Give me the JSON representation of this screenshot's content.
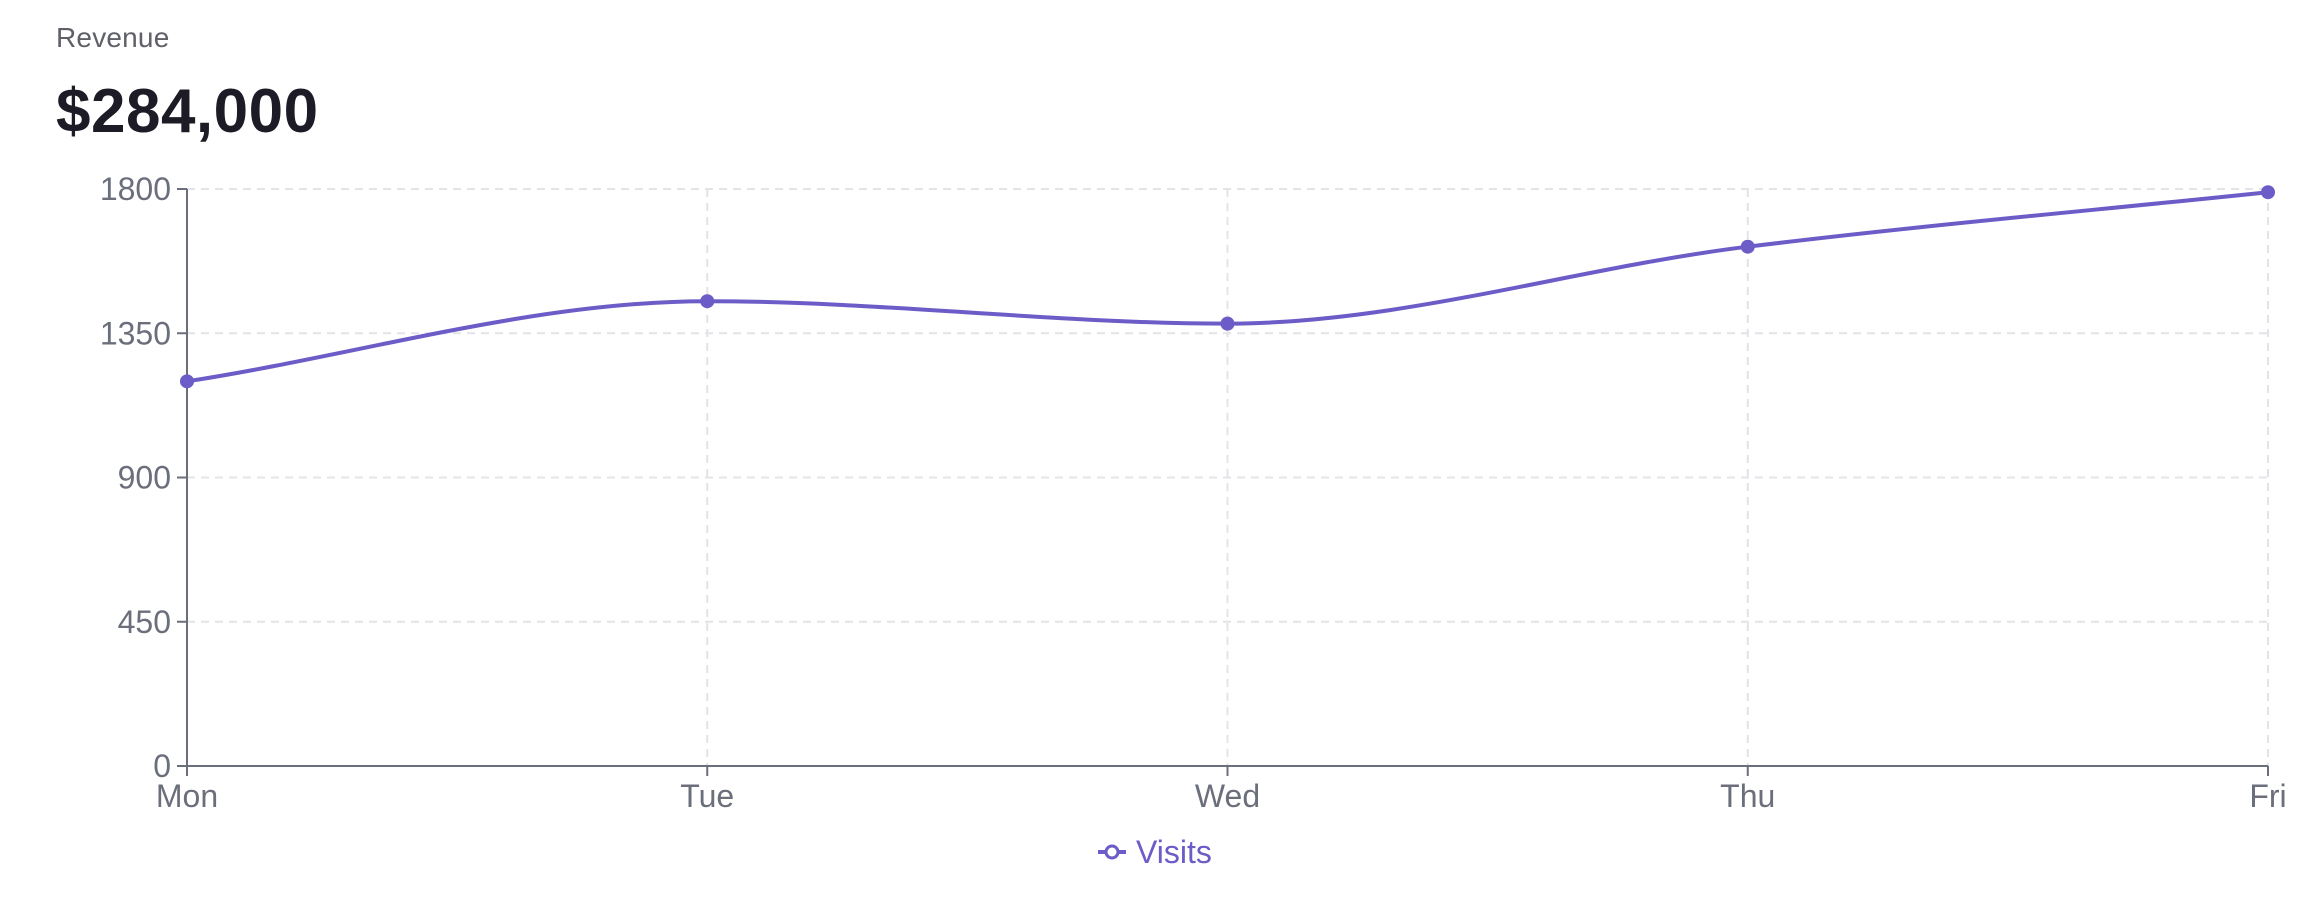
{
  "header": {
    "label": "Revenue",
    "value": "$284,000"
  },
  "colors": {
    "series": "#6b5cc7",
    "grid": "#e3e4e8",
    "axis": "#6b6f7b",
    "tick_text": "#6b6f7b"
  },
  "chart_data": {
    "type": "line",
    "title": "",
    "xlabel": "",
    "ylabel": "",
    "categories": [
      "Mon",
      "Tue",
      "Wed",
      "Thu",
      "Fri"
    ],
    "yticks": [
      "0",
      "450",
      "900",
      "1350",
      "1800"
    ],
    "ylim": [
      0,
      1800
    ],
    "grid": true,
    "curve": "smooth",
    "legend": "bottom-center",
    "series": [
      {
        "name": "Visits",
        "values": [
          1200,
          1450,
          1380,
          1620,
          1790
        ]
      }
    ]
  }
}
